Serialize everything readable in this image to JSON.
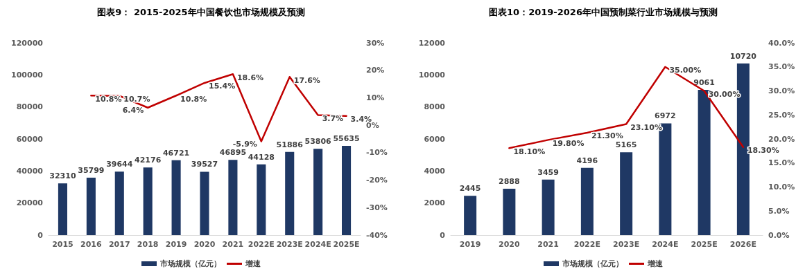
{
  "chart_data": [
    {
      "type": "bar",
      "title": "图表9： 2015-2025年中国餐饮也市场规模及预测",
      "categories": [
        "2015",
        "2016",
        "2017",
        "2018",
        "2019",
        "2020",
        "2021",
        "2022E",
        "2023E",
        "2024E",
        "2025E"
      ],
      "series": [
        {
          "name": "市场规模（亿元）",
          "color": "#1f3864",
          "values": [
            32310,
            35799,
            39644,
            42176,
            46721,
            39527,
            46895,
            44128,
            51886,
            53806,
            55635
          ],
          "value_labels": [
            "32310",
            "35799",
            "39644",
            "42176",
            "46721",
            "39527",
            "46895",
            "44128",
            "51886",
            "53806",
            "55635"
          ]
        },
        {
          "name": "增速",
          "type": "line",
          "axis": "y2",
          "color": "#c00000",
          "values": [
            null,
            10.8,
            10.7,
            6.4,
            10.8,
            15.4,
            18.6,
            -5.9,
            17.6,
            3.7,
            3.4
          ],
          "value_labels": [
            null,
            "10.8%",
            "10.7%",
            "6.4%",
            "10.8%",
            "15.4%",
            "18.6%",
            "-5.9%",
            "17.6%",
            "3.7%",
            "3.4%"
          ]
        }
      ],
      "ylim": [
        0,
        120000
      ],
      "yticks": [
        0,
        20000,
        40000,
        60000,
        80000,
        100000,
        120000
      ],
      "y2lim": [
        -40,
        30
      ],
      "y2ticks": [
        {
          "value": -40,
          "label": "-40%"
        },
        {
          "value": -30,
          "label": "-30%"
        },
        {
          "value": -20,
          "label": "-20%"
        },
        {
          "value": -10,
          "label": "-10%"
        },
        {
          "value": 0,
          "label": "0%"
        },
        {
          "value": 10,
          "label": "10%"
        },
        {
          "value": 20,
          "label": "20%"
        },
        {
          "value": 30,
          "label": "30%"
        }
      ],
      "grid": false,
      "legend": "bottom",
      "marker": "none",
      "line_style": "solid"
    },
    {
      "type": "bar",
      "title": "图表10：2019-2026年中国预制菜行业市场规模与预测",
      "categories": [
        "2019",
        "2020",
        "2021",
        "2022E",
        "2023E",
        "2024E",
        "2025E",
        "2026E"
      ],
      "series": [
        {
          "name": "市场规模（亿元）",
          "color": "#1f3864",
          "values": [
            2445,
            2888,
            3459,
            4196,
            5165,
            6972,
            9061,
            10720
          ],
          "value_labels": [
            "2445",
            "2888",
            "3459",
            "4196",
            "5165",
            "6972",
            "9061",
            "10720"
          ]
        },
        {
          "name": "增速",
          "type": "line",
          "axis": "y2",
          "color": "#c00000",
          "values": [
            null,
            18.1,
            19.8,
            21.3,
            23.1,
            35.0,
            30.0,
            18.3
          ],
          "value_labels": [
            null,
            "18.10%",
            "19.80%",
            "21.30%",
            "23.10%",
            "35.00%",
            "30.00%",
            "18.30%"
          ]
        }
      ],
      "ylim": [
        0,
        12000
      ],
      "yticks": [
        0,
        2000,
        4000,
        6000,
        8000,
        10000,
        12000
      ],
      "y2lim": [
        0,
        40
      ],
      "y2ticks": [
        {
          "value": 0,
          "label": "0.0%"
        },
        {
          "value": 5,
          "label": "5.0%"
        },
        {
          "value": 10,
          "label": "10.0%"
        },
        {
          "value": 15,
          "label": "15.0%"
        },
        {
          "value": 20,
          "label": "20.0%"
        },
        {
          "value": 25,
          "label": "25.0%"
        },
        {
          "value": 30,
          "label": "30.0%"
        },
        {
          "value": 35,
          "label": "35.0%"
        },
        {
          "value": 40,
          "label": "40.0%"
        }
      ],
      "grid": false,
      "legend": "bottom",
      "marker": "none",
      "line_style": "solid"
    }
  ]
}
